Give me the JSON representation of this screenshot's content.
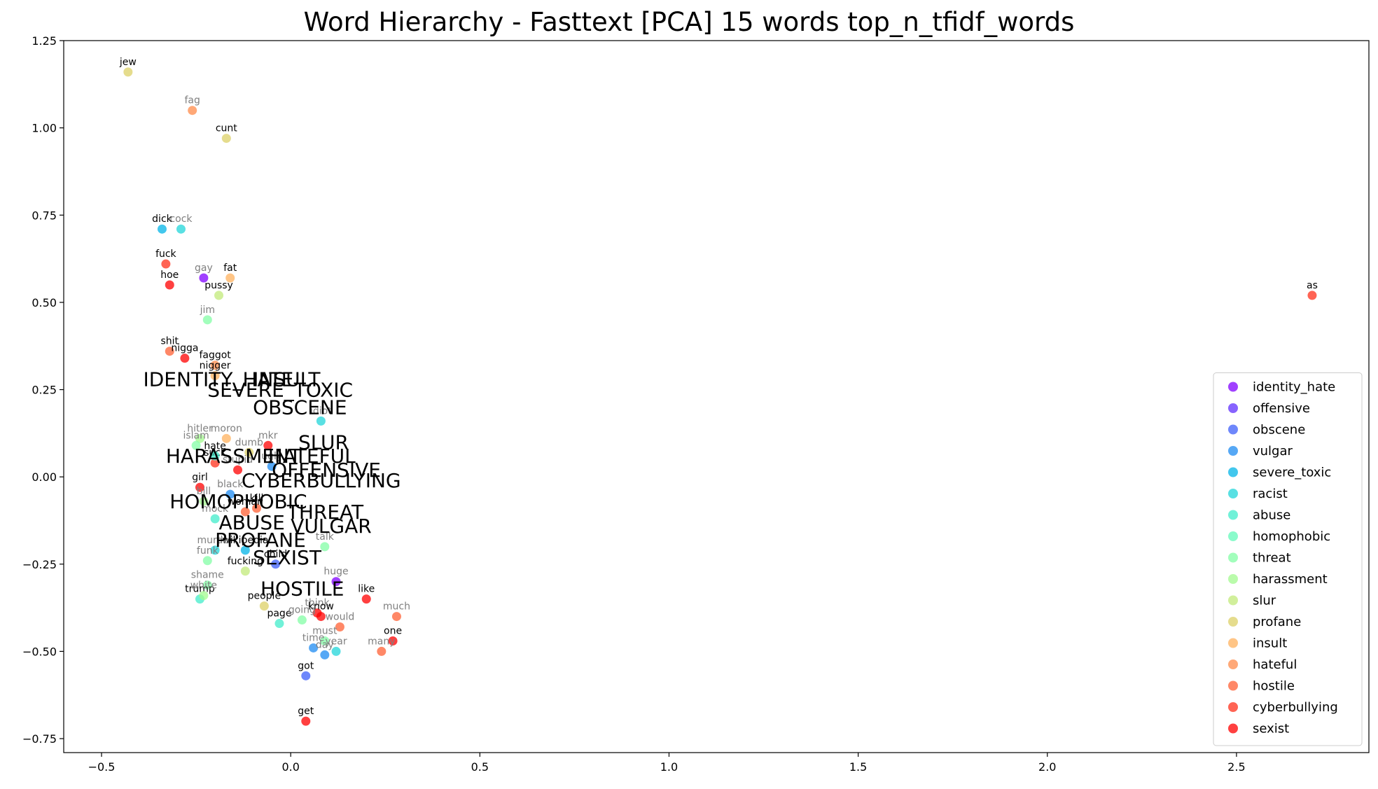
{
  "chart_data": {
    "type": "scatter",
    "title": "Word Hierarchy - Fasttext [PCA] 15 words top_n_tfidf_words",
    "xlabel": "",
    "ylabel": "",
    "xlim": [
      -0.6,
      2.85
    ],
    "ylim": [
      -0.79,
      1.25
    ],
    "x_ticks": [
      -0.5,
      0.0,
      0.5,
      1.0,
      1.5,
      2.0,
      2.5
    ],
    "x_tick_labels": [
      "−0.5",
      "0.0",
      "0.5",
      "1.0",
      "1.5",
      "2.0",
      "2.5"
    ],
    "y_ticks": [
      -0.75,
      -0.5,
      -0.25,
      0.0,
      0.25,
      0.5,
      0.75,
      1.0,
      1.25
    ],
    "y_tick_labels": [
      "−0.75",
      "−0.50",
      "−0.25",
      "0.00",
      "0.25",
      "0.50",
      "0.75",
      "1.00",
      "1.25"
    ],
    "grid": false,
    "legend_position": "bottom-right",
    "series": [
      {
        "name": "identity_hate",
        "color": "#8000ff"
      },
      {
        "name": "offensive",
        "color": "#5f2ffe"
      },
      {
        "name": "obscene",
        "color": "#3e5ffa"
      },
      {
        "name": "vulgar",
        "color": "#1e8bf2"
      },
      {
        "name": "severe_toxic",
        "color": "#03b4e7"
      },
      {
        "name": "racist",
        "color": "#22d5d9"
      },
      {
        "name": "abuse",
        "color": "#42eccb"
      },
      {
        "name": "homophobic",
        "color": "#63fab9"
      },
      {
        "name": "threat",
        "color": "#83fea6"
      },
      {
        "name": "harassment",
        "color": "#a3f98f"
      },
      {
        "name": "slur",
        "color": "#c1e97a"
      },
      {
        "name": "profane",
        "color": "#dcd067"
      },
      {
        "name": "insult",
        "color": "#ffb25e"
      },
      {
        "name": "hateful",
        "color": "#ff8b49"
      },
      {
        "name": "hostile",
        "color": "#ff6034"
      },
      {
        "name": "cyberbullying",
        "color": "#ff301b"
      },
      {
        "name": "sexist",
        "color": "#ff0000"
      }
    ],
    "category_labels": [
      {
        "text": "IDENTITY_HATE",
        "x": -0.39,
        "y": 0.26
      },
      {
        "text": "INSULT",
        "x": -0.1,
        "y": 0.26
      },
      {
        "text": "SEVERE_TOXIC",
        "x": -0.22,
        "y": 0.23
      },
      {
        "text": "OBSCENE",
        "x": -0.1,
        "y": 0.18
      },
      {
        "text": "SLUR",
        "x": 0.02,
        "y": 0.08
      },
      {
        "text": "HARASSMENT",
        "x": -0.33,
        "y": 0.04
      },
      {
        "text": "HATEFUL",
        "x": -0.06,
        "y": 0.04
      },
      {
        "text": "OFFENSIVE",
        "x": -0.05,
        "y": 0.0
      },
      {
        "text": "CYBERBULLYING",
        "x": -0.13,
        "y": -0.03
      },
      {
        "text": "HOMOPHOBIC",
        "x": -0.32,
        "y": -0.09
      },
      {
        "text": "THREAT",
        "x": -0.01,
        "y": -0.12
      },
      {
        "text": "ABUSE",
        "x": -0.19,
        "y": -0.15
      },
      {
        "text": "VULGAR",
        "x": -0.0,
        "y": -0.16
      },
      {
        "text": "PROFANE",
        "x": -0.2,
        "y": -0.2
      },
      {
        "text": "SEXIST",
        "x": -0.1,
        "y": -0.25
      },
      {
        "text": "HOSTILE",
        "x": -0.08,
        "y": -0.34
      }
    ],
    "points": [
      {
        "word": "jew",
        "x": -0.43,
        "y": 1.16,
        "series": "profane",
        "label_color": "#000000"
      },
      {
        "word": "fag",
        "x": -0.26,
        "y": 1.05,
        "series": "hateful",
        "label_color": "#808080"
      },
      {
        "word": "cunt",
        "x": -0.17,
        "y": 0.97,
        "series": "profane",
        "label_color": "#000000"
      },
      {
        "word": "dick",
        "x": -0.34,
        "y": 0.71,
        "series": "severe_toxic",
        "label_color": "#000000"
      },
      {
        "word": "cock",
        "x": -0.29,
        "y": 0.71,
        "series": "racist",
        "label_color": "#808080"
      },
      {
        "word": "fuck",
        "x": -0.33,
        "y": 0.61,
        "series": "cyberbullying",
        "label_color": "#000000"
      },
      {
        "word": "gay",
        "x": -0.23,
        "y": 0.57,
        "series": "identity_hate",
        "label_color": "#808080"
      },
      {
        "word": "fat",
        "x": -0.16,
        "y": 0.57,
        "series": "insult",
        "label_color": "#000000"
      },
      {
        "word": "hoe",
        "x": -0.32,
        "y": 0.55,
        "series": "sexist",
        "label_color": "#000000"
      },
      {
        "word": "pussy",
        "x": -0.19,
        "y": 0.52,
        "series": "slur",
        "label_color": "#000000"
      },
      {
        "word": "jim",
        "x": -0.22,
        "y": 0.45,
        "series": "threat",
        "label_color": "#808080"
      },
      {
        "word": "as",
        "x": 2.7,
        "y": 0.52,
        "series": "cyberbullying",
        "label_color": "#000000"
      },
      {
        "word": "shit",
        "x": -0.32,
        "y": 0.36,
        "series": "hostile",
        "label_color": "#000000"
      },
      {
        "word": "nigga",
        "x": -0.28,
        "y": 0.34,
        "series": "sexist",
        "label_color": "#000000"
      },
      {
        "word": "faggot",
        "x": -0.2,
        "y": 0.32,
        "series": "hateful",
        "label_color": "#000000"
      },
      {
        "word": "nigger",
        "x": -0.2,
        "y": 0.29,
        "series": "insult",
        "label_color": "#000000"
      },
      {
        "word": "idiot",
        "x": 0.08,
        "y": 0.16,
        "series": "racist",
        "label_color": "#808080"
      },
      {
        "word": "hitler",
        "x": -0.24,
        "y": 0.11,
        "series": "harassment",
        "label_color": "#808080"
      },
      {
        "word": "moron",
        "x": -0.17,
        "y": 0.11,
        "series": "insult",
        "label_color": "#808080"
      },
      {
        "word": "mkr",
        "x": -0.06,
        "y": 0.09,
        "series": "sexist",
        "label_color": "#808080"
      },
      {
        "word": "suck",
        "x": -0.2,
        "y": 0.04,
        "series": "cyberbullying",
        "label_color": "#000000"
      },
      {
        "word": "girl",
        "x": -0.24,
        "y": -0.03,
        "series": "sexist",
        "label_color": "#000000"
      },
      {
        "word": "talk",
        "x": 0.09,
        "y": -0.2,
        "series": "threat",
        "label_color": "#808080"
      },
      {
        "word": "wikipedia",
        "x": -0.12,
        "y": -0.21,
        "series": "severe_toxic",
        "label_color": "#000000"
      },
      {
        "word": "child",
        "x": -0.04,
        "y": -0.25,
        "series": "obscene",
        "label_color": "#000000"
      },
      {
        "word": "huge",
        "x": 0.12,
        "y": -0.3,
        "series": "identity_hate",
        "label_color": "#808080"
      },
      {
        "word": "like",
        "x": 0.2,
        "y": -0.35,
        "series": "sexist",
        "label_color": "#000000"
      },
      {
        "word": "much",
        "x": 0.28,
        "y": -0.4,
        "series": "hostile",
        "label_color": "#808080"
      },
      {
        "word": "people",
        "x": -0.07,
        "y": -0.37,
        "series": "profane",
        "label_color": "#000000"
      },
      {
        "word": "think",
        "x": 0.07,
        "y": -0.39,
        "series": "sexist",
        "label_color": "#808080"
      },
      {
        "word": "know",
        "x": 0.08,
        "y": -0.4,
        "series": "sexist",
        "label_color": "#000000"
      },
      {
        "word": "page",
        "x": -0.03,
        "y": -0.42,
        "series": "abuse",
        "label_color": "#000000"
      },
      {
        "word": "going",
        "x": 0.03,
        "y": -0.41,
        "series": "threat",
        "label_color": "#808080"
      },
      {
        "word": "would",
        "x": 0.13,
        "y": -0.43,
        "series": "hostile",
        "label_color": "#808080"
      },
      {
        "word": "must",
        "x": 0.09,
        "y": -0.47,
        "series": "threat",
        "label_color": "#808080"
      },
      {
        "word": "one",
        "x": 0.27,
        "y": -0.47,
        "series": "sexist",
        "label_color": "#000000"
      },
      {
        "word": "many",
        "x": 0.24,
        "y": -0.5,
        "series": "hostile",
        "label_color": "#808080"
      },
      {
        "word": "time",
        "x": 0.06,
        "y": -0.49,
        "series": "vulgar",
        "label_color": "#808080"
      },
      {
        "word": "day",
        "x": 0.09,
        "y": -0.51,
        "series": "vulgar",
        "label_color": "#808080"
      },
      {
        "word": "year",
        "x": 0.12,
        "y": -0.5,
        "series": "racist",
        "label_color": "#808080"
      },
      {
        "word": "got",
        "x": 0.04,
        "y": -0.57,
        "series": "obscene",
        "label_color": "#000000"
      },
      {
        "word": "get",
        "x": 0.04,
        "y": -0.7,
        "series": "sexist",
        "label_color": "#000000"
      },
      {
        "word": "islam",
        "x": -0.25,
        "y": 0.09,
        "series": "threat",
        "label_color": "#808080"
      },
      {
        "word": "dumb",
        "x": -0.11,
        "y": 0.07,
        "series": "profane",
        "label_color": "#808080"
      },
      {
        "word": "shame",
        "x": -0.22,
        "y": -0.31,
        "series": "threat",
        "label_color": "#808080"
      },
      {
        "word": "trump",
        "x": -0.24,
        "y": -0.35,
        "series": "abuse",
        "label_color": "#000000"
      },
      {
        "word": "white",
        "x": -0.23,
        "y": -0.34,
        "series": "harassment",
        "label_color": "#808080"
      },
      {
        "word": "fucking",
        "x": -0.12,
        "y": -0.27,
        "series": "slur",
        "label_color": "#000000"
      },
      {
        "word": "murder",
        "x": -0.2,
        "y": -0.21,
        "series": "racist",
        "label_color": "#808080"
      },
      {
        "word": "funk",
        "x": -0.22,
        "y": -0.24,
        "series": "threat",
        "label_color": "#808080"
      },
      {
        "word": "mock",
        "x": -0.2,
        "y": -0.12,
        "series": "abuse",
        "label_color": "#808080"
      },
      {
        "word": "kill",
        "x": -0.09,
        "y": -0.09,
        "series": "hostile",
        "label_color": "#000000"
      },
      {
        "word": "woman",
        "x": -0.12,
        "y": -0.1,
        "series": "hostile",
        "label_color": "#000000"
      },
      {
        "word": "black",
        "x": -0.16,
        "y": -0.05,
        "series": "vulgar",
        "label_color": "#808080"
      },
      {
        "word": "bill",
        "x": -0.23,
        "y": -0.07,
        "series": "harassment",
        "label_color": "#808080"
      },
      {
        "word": "stupid",
        "x": -0.14,
        "y": 0.02,
        "series": "sexist",
        "label_color": "#808080"
      },
      {
        "word": "ugly",
        "x": -0.05,
        "y": 0.03,
        "series": "vulgar",
        "label_color": "#808080"
      },
      {
        "word": "hate",
        "x": -0.2,
        "y": 0.06,
        "series": "abuse",
        "label_color": "#000000"
      }
    ]
  }
}
